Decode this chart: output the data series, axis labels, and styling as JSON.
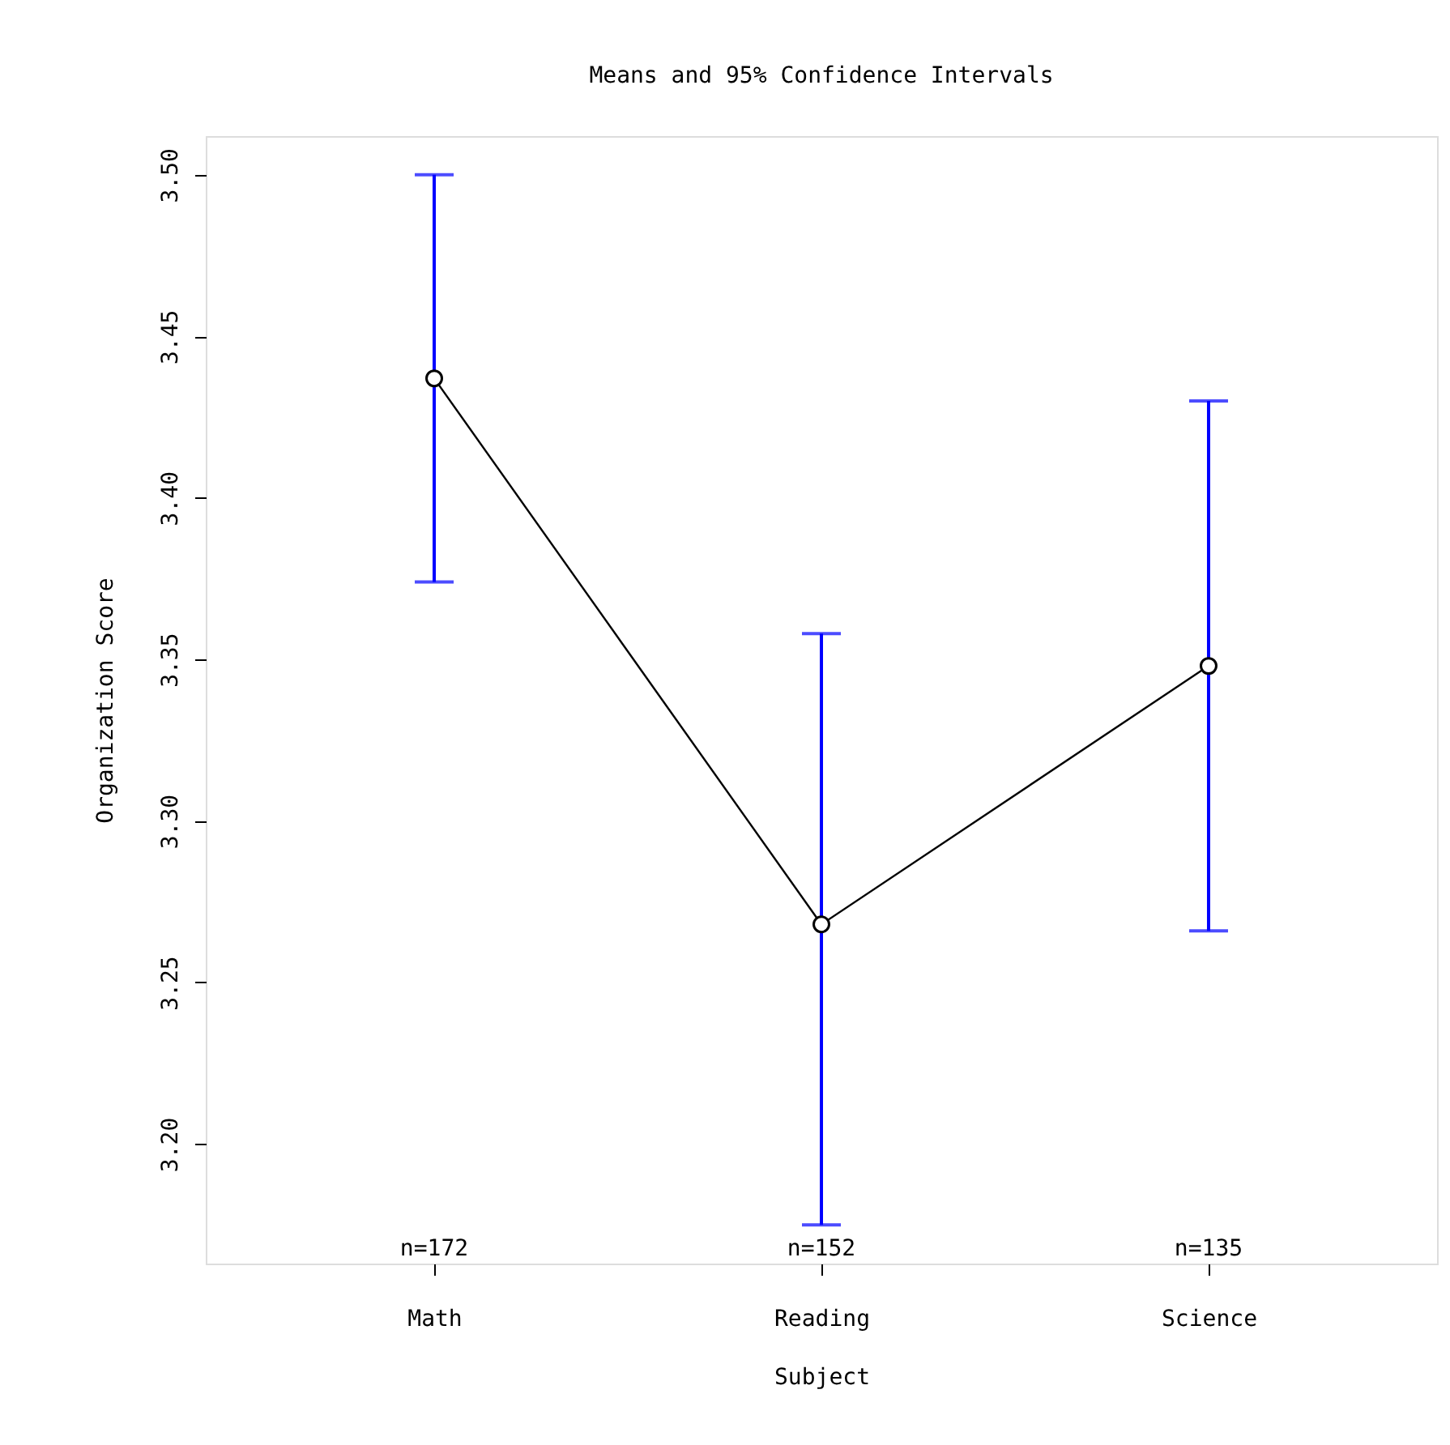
{
  "chart_data": {
    "type": "line",
    "title": "Means and 95% Confidence Intervals",
    "xlabel": "Subject",
    "ylabel": "Organization Score",
    "categories": [
      "Math",
      "Reading",
      "Science"
    ],
    "series": [
      {
        "color": "#000000",
        "values": [
          3.437,
          3.268,
          3.348
        ],
        "errors": [
          [
            3.374,
            3.5
          ],
          [
            3.175,
            3.358
          ],
          [
            3.266,
            3.43
          ]
        ]
      }
    ],
    "ylim": [
      3.163,
      3.512
    ],
    "yticks": [
      {
        "value": 3.2,
        "label": "3.20"
      },
      {
        "value": 3.25,
        "label": "3.25"
      },
      {
        "value": 3.3,
        "label": "3.30"
      },
      {
        "value": 3.35,
        "label": "3.35"
      },
      {
        "value": 3.4,
        "label": "3.40"
      },
      {
        "value": 3.45,
        "label": "3.45"
      },
      {
        "value": 3.5,
        "label": "3.50"
      }
    ],
    "annotations": [
      "n=172",
      "n=152",
      "n=135"
    ],
    "marker": "circle",
    "line_style": "solid"
  }
}
